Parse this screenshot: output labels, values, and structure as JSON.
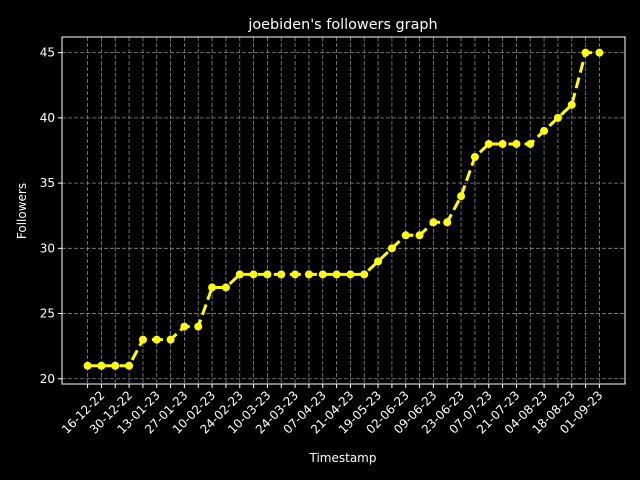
{
  "chart_data": {
    "type": "line",
    "title": "joebiden's followers graph",
    "x_label": "Timestamp",
    "y_label": "Followers",
    "categories": [
      null,
      "16-12-22",
      null,
      "30-12-22",
      null,
      "13-01-23",
      null,
      "27-01-23",
      null,
      "10-02-23",
      null,
      "24-02-23",
      null,
      "10-03-23",
      null,
      "24-03-23",
      null,
      "07-04-23",
      null,
      "21-04-23",
      null,
      "19-05-23",
      null,
      "02-06-23",
      null,
      "09-06-23",
      null,
      "23-06-23",
      null,
      "07-07-23",
      null,
      "21-07-23",
      null,
      "04-08-23",
      null,
      "18-08-23",
      null,
      "01-09-23"
    ],
    "series": [
      {
        "name": "Followers",
        "color": "#ffff00",
        "values": [
          21,
          21,
          21,
          21,
          23,
          23,
          23,
          24,
          24,
          27,
          27,
          28,
          28,
          28,
          28,
          28,
          28,
          28,
          28,
          28,
          28,
          29,
          30,
          31,
          31,
          32,
          32,
          34,
          37,
          38,
          38,
          38,
          38,
          39,
          40,
          41,
          45,
          45
        ]
      }
    ],
    "ylim": [
      19.6,
      46.2
    ],
    "yticks": [
      20,
      25,
      30,
      35,
      40,
      45
    ],
    "grid": true
  }
}
